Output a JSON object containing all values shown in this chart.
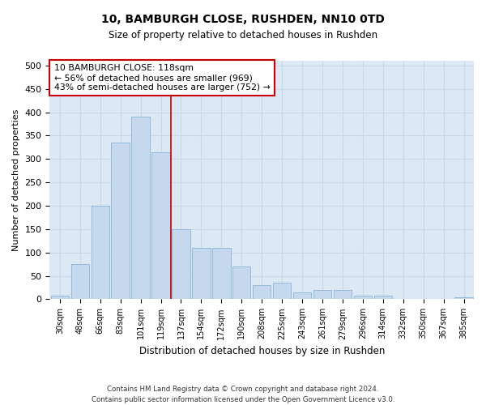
{
  "title1": "10, BAMBURGH CLOSE, RUSHDEN, NN10 0TD",
  "title2": "Size of property relative to detached houses in Rushden",
  "xlabel": "Distribution of detached houses by size in Rushden",
  "ylabel": "Number of detached properties",
  "categories": [
    "30sqm",
    "48sqm",
    "66sqm",
    "83sqm",
    "101sqm",
    "119sqm",
    "137sqm",
    "154sqm",
    "172sqm",
    "190sqm",
    "208sqm",
    "225sqm",
    "243sqm",
    "261sqm",
    "279sqm",
    "296sqm",
    "314sqm",
    "332sqm",
    "350sqm",
    "367sqm",
    "385sqm"
  ],
  "values": [
    8,
    75,
    200,
    335,
    390,
    315,
    150,
    110,
    110,
    70,
    30,
    35,
    15,
    20,
    20,
    8,
    8,
    0,
    0,
    0,
    5
  ],
  "bar_color": "#c5d8ee",
  "bar_edge_color": "#8ab4d8",
  "vline_x_index": 5,
  "vline_color": "#cc0000",
  "annotation_text": "10 BAMBURGH CLOSE: 118sqm\n← 56% of detached houses are smaller (969)\n43% of semi-detached houses are larger (752) →",
  "annotation_box_color": "#ffffff",
  "annotation_box_edge": "#cc0000",
  "grid_color": "#c8d8e8",
  "background_color": "#dce8f4",
  "footer1": "Contains HM Land Registry data © Crown copyright and database right 2024.",
  "footer2": "Contains public sector information licensed under the Open Government Licence v3.0.",
  "ylim": [
    0,
    510
  ],
  "yticks": [
    0,
    50,
    100,
    150,
    200,
    250,
    300,
    350,
    400,
    450,
    500
  ]
}
